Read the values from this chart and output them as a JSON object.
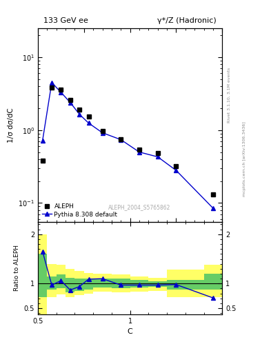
{
  "title_left": "133 GeV ee",
  "title_right": "γ*/Z (Hadronic)",
  "ylabel_main": "1/σ dσ/dC",
  "ylabel_ratio": "Ratio to ALEPH",
  "xlabel": "C",
  "rivet_label": "Rivet 3.1.10, 3.1M events",
  "mcplots_label": "mcplots.cern.ch [arXiv:1306.3436]",
  "analysis_label": "ALEPH_2004_S5765862",
  "aleph_x": [
    0.025,
    0.075,
    0.125,
    0.175,
    0.225,
    0.275,
    0.35,
    0.45,
    0.55,
    0.65,
    0.75,
    0.95
  ],
  "aleph_y": [
    0.38,
    3.8,
    3.6,
    2.6,
    1.9,
    1.55,
    0.97,
    0.75,
    0.54,
    0.48,
    0.32,
    0.13
  ],
  "pythia_x": [
    0.025,
    0.075,
    0.125,
    0.175,
    0.225,
    0.275,
    0.35,
    0.45,
    0.55,
    0.65,
    0.75,
    0.95
  ],
  "pythia_y": [
    0.72,
    4.5,
    3.3,
    2.4,
    1.65,
    1.25,
    0.92,
    0.74,
    0.5,
    0.43,
    0.28,
    0.085
  ],
  "ratio_pythia_x": [
    0.025,
    0.075,
    0.125,
    0.175,
    0.225,
    0.275,
    0.35,
    0.45,
    0.55,
    0.65,
    0.75,
    0.95
  ],
  "ratio_pythia_y": [
    1.65,
    0.97,
    1.06,
    0.87,
    0.94,
    1.09,
    1.1,
    0.97,
    0.97,
    0.97,
    0.98,
    0.71
  ],
  "band_x_edges": [
    0.0,
    0.05,
    0.1,
    0.15,
    0.2,
    0.25,
    0.3,
    0.4,
    0.5,
    0.6,
    0.7,
    0.9,
    1.0
  ],
  "band_green_lo": [
    0.72,
    0.88,
    0.9,
    0.82,
    0.85,
    0.88,
    0.92,
    0.9,
    0.92,
    0.93,
    0.88,
    0.88,
    0.88
  ],
  "band_green_hi": [
    1.6,
    1.15,
    1.18,
    1.12,
    1.1,
    1.1,
    1.1,
    1.1,
    1.08,
    1.05,
    1.08,
    1.2,
    1.2
  ],
  "band_yellow_lo": [
    0.38,
    0.72,
    0.78,
    0.73,
    0.76,
    0.8,
    0.84,
    0.82,
    0.84,
    0.85,
    0.72,
    0.72,
    0.72
  ],
  "band_yellow_hi": [
    2.0,
    1.4,
    1.38,
    1.3,
    1.25,
    1.22,
    1.2,
    1.18,
    1.15,
    1.12,
    1.28,
    1.38,
    1.38
  ],
  "color_data": "#000000",
  "color_pythia": "#0000cc",
  "color_green": "#66cc66",
  "color_yellow": "#ffff66",
  "ylim_main": [
    0.055,
    25
  ],
  "ylim_ratio": [
    0.38,
    2.25
  ],
  "xlim": [
    0.0,
    1.0
  ]
}
